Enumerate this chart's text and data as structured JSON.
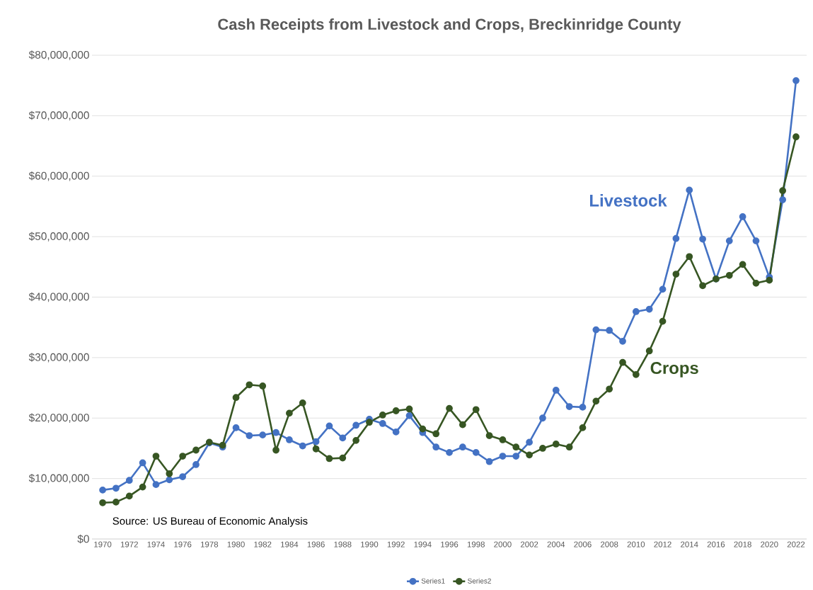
{
  "chart_data": {
    "type": "line",
    "title": "Cash Receipts from Livestock and Crops, Breckinridge County",
    "x": [
      1970,
      1971,
      1972,
      1973,
      1974,
      1975,
      1976,
      1977,
      1978,
      1979,
      1980,
      1981,
      1982,
      1983,
      1984,
      1985,
      1986,
      1987,
      1988,
      1989,
      1990,
      1991,
      1992,
      1993,
      1994,
      1995,
      1996,
      1997,
      1998,
      1999,
      2000,
      2001,
      2002,
      2003,
      2004,
      2005,
      2006,
      2007,
      2008,
      2009,
      2010,
      2011,
      2012,
      2013,
      2014,
      2015,
      2016,
      2017,
      2018,
      2019,
      2020,
      2021,
      2022
    ],
    "series": [
      {
        "name": "Series1",
        "color": "#4472c4",
        "values": [
          8100000,
          8400000,
          9700000,
          12600000,
          9000000,
          9800000,
          10300000,
          12300000,
          15900000,
          15200000,
          18400000,
          17100000,
          17200000,
          17600000,
          16400000,
          15400000,
          16100000,
          18700000,
          16700000,
          18800000,
          19800000,
          19100000,
          17700000,
          20400000,
          17600000,
          15200000,
          14300000,
          15200000,
          14300000,
          12800000,
          13700000,
          13700000,
          16000000,
          20000000,
          24600000,
          21900000,
          21800000,
          34600000,
          34500000,
          32700000,
          37600000,
          38000000,
          41300000,
          49700000,
          57700000,
          49600000,
          43000000,
          49300000,
          53300000,
          49300000,
          43300000,
          56100000,
          75800000
        ]
      },
      {
        "name": "Series2",
        "color": "#375623",
        "values": [
          6000000,
          6100000,
          7100000,
          8600000,
          13700000,
          10800000,
          13700000,
          14700000,
          16000000,
          15500000,
          23400000,
          25500000,
          25300000,
          14700000,
          20800000,
          22500000,
          14900000,
          13300000,
          13400000,
          16300000,
          19300000,
          20500000,
          21200000,
          21500000,
          18200000,
          17400000,
          21600000,
          18900000,
          21400000,
          17100000,
          16400000,
          15200000,
          13900000,
          15000000,
          15700000,
          15200000,
          18400000,
          22800000,
          24800000,
          29200000,
          27200000,
          31100000,
          36000000,
          43800000,
          46700000,
          41900000,
          43000000,
          43600000,
          45400000,
          42300000,
          42800000,
          57600000,
          66500000
        ]
      }
    ],
    "annotations": [
      "Livestock",
      "Crops",
      "Source: US Bureau of Economic Analysis"
    ],
    "xlim": [
      1969.2,
      2022.8
    ],
    "xticks": [
      1970,
      1972,
      1974,
      1976,
      1978,
      1980,
      1982,
      1984,
      1986,
      1988,
      1990,
      1992,
      1994,
      1996,
      1998,
      2000,
      2002,
      2004,
      2006,
      2008,
      2010,
      2012,
      2014,
      2016,
      2018,
      2020,
      2022
    ],
    "ylim": [
      0,
      80000000
    ],
    "yticks": [
      {
        "value": 0,
        "label": "$0"
      },
      {
        "value": 10000000,
        "label": "$10,000,000"
      },
      {
        "value": 20000000,
        "label": "$20,000,000"
      },
      {
        "value": 30000000,
        "label": "$30,000,000"
      },
      {
        "value": 40000000,
        "label": "$40,000,000"
      },
      {
        "value": 50000000,
        "label": "$50,000,000"
      },
      {
        "value": 60000000,
        "label": "$60,000,000"
      },
      {
        "value": 70000000,
        "label": "$70,000,000"
      },
      {
        "value": 80000000,
        "label": "$80,000,000"
      }
    ],
    "grid": "y",
    "legend": "bottom",
    "marker": "circle",
    "line_style": "solid"
  }
}
